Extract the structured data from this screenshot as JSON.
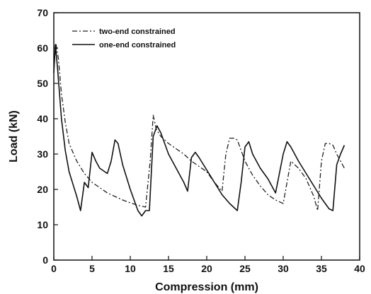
{
  "chart_data": {
    "type": "line",
    "xlabel": "Compression (mm)",
    "ylabel": "Load (kN)",
    "xlim": [
      0,
      40
    ],
    "ylim": [
      0,
      70
    ],
    "x_ticks": [
      0,
      5,
      10,
      15,
      20,
      25,
      30,
      35,
      40
    ],
    "y_ticks": [
      0,
      10,
      20,
      30,
      40,
      50,
      60,
      70
    ],
    "grid": false,
    "legend_position": "top-left",
    "series": [
      {
        "name": "two-end constrained",
        "style": "dash-dot",
        "color": "#222222",
        "x": [
          0,
          0.3,
          0.6,
          1,
          1.5,
          2,
          3,
          4,
          5,
          6,
          7,
          8,
          9,
          10,
          11,
          12,
          12.6,
          13,
          13.4,
          14,
          15,
          16,
          17,
          18,
          19,
          20,
          21,
          22,
          22.5,
          23,
          23.5,
          24,
          25,
          26,
          27,
          28,
          29,
          30,
          31,
          32,
          33,
          34,
          34.5,
          35,
          35.5,
          36,
          36.5,
          37,
          38
        ],
        "y": [
          55,
          61,
          57,
          47,
          39,
          33,
          28,
          24.5,
          22,
          20.5,
          19,
          18,
          17,
          16.2,
          15.5,
          15,
          28,
          41,
          37,
          35,
          33,
          31.5,
          30,
          28,
          26.5,
          25,
          22,
          19.5,
          30,
          34.5,
          34.5,
          34,
          28,
          24,
          21,
          18.5,
          17,
          16,
          28,
          26,
          23,
          18,
          14,
          28,
          33,
          33,
          32.5,
          30,
          26
        ]
      },
      {
        "name": "one-end constrained",
        "style": "solid",
        "color": "#111111",
        "x": [
          0,
          0.2,
          0.5,
          1,
          1.5,
          2,
          3,
          3.5,
          4,
          4.5,
          5,
          5.5,
          6,
          7,
          7.5,
          8,
          8.4,
          9,
          10,
          11,
          11.5,
          12,
          12.5,
          13,
          13.5,
          14,
          15,
          16,
          17,
          17.5,
          18,
          18.5,
          19,
          20,
          21,
          22,
          23,
          24,
          24.5,
          25,
          25.5,
          26,
          27,
          28,
          29,
          30,
          30.5,
          31,
          32,
          33,
          34,
          35,
          36,
          36.5,
          37,
          37.5,
          38
        ],
        "y": [
          53,
          61,
          54,
          40,
          31,
          25,
          18,
          14,
          22,
          20.5,
          30.5,
          28,
          26,
          24.5,
          28,
          34,
          33,
          27,
          20,
          14,
          12.5,
          14,
          14,
          35,
          38,
          36,
          30,
          26,
          22,
          19.5,
          29,
          30.5,
          29,
          25.5,
          22,
          18.5,
          16,
          14,
          22,
          32,
          33.5,
          30,
          26,
          23,
          19,
          30,
          33.5,
          32,
          28,
          24.5,
          21,
          17.5,
          14.5,
          14,
          27,
          30,
          32.5
        ]
      }
    ]
  }
}
